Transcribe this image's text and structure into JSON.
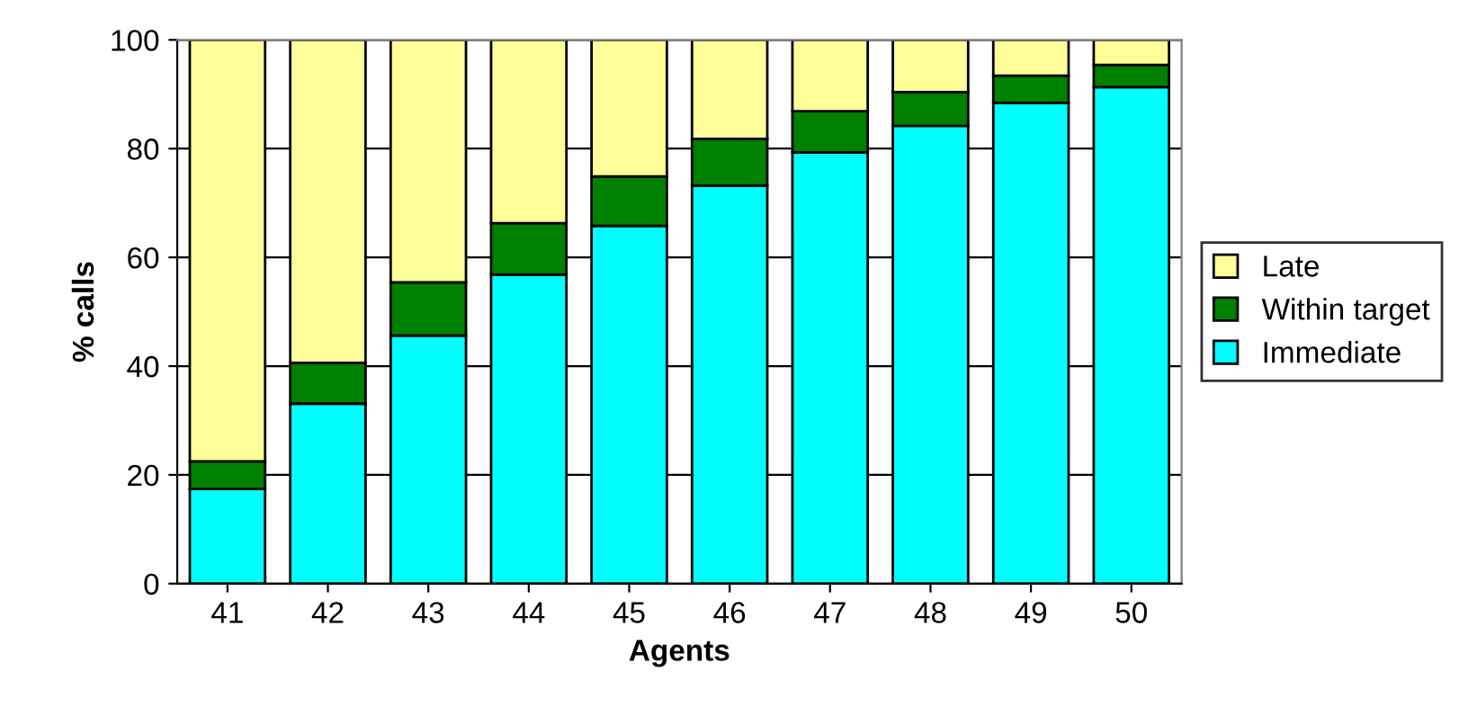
{
  "chart_data": {
    "type": "bar",
    "stacked": true,
    "xlabel": "Agents",
    "ylabel": "% calls",
    "categories": [
      "41",
      "42",
      "43",
      "44",
      "45",
      "46",
      "47",
      "48",
      "49",
      "50"
    ],
    "series": [
      {
        "name": "Immediate",
        "color": "#00ffff",
        "values": [
          17.4,
          33.1,
          45.6,
          56.8,
          65.8,
          73.2,
          79.3,
          84.2,
          88.4,
          91.3
        ]
      },
      {
        "name": "Within target",
        "color": "#008000",
        "values": [
          5.1,
          7.5,
          9.8,
          9.5,
          9.1,
          8.6,
          7.6,
          6.2,
          5.0,
          4.1
        ]
      },
      {
        "name": "Late",
        "color": "#ffff99",
        "values": [
          77.5,
          59.4,
          44.6,
          33.7,
          25.1,
          18.2,
          13.1,
          9.6,
          6.6,
          4.6
        ]
      }
    ],
    "ylim": [
      0,
      100
    ],
    "yticks": [
      0,
      20,
      40,
      60,
      80,
      100
    ],
    "grid": "y",
    "legend": "right"
  }
}
